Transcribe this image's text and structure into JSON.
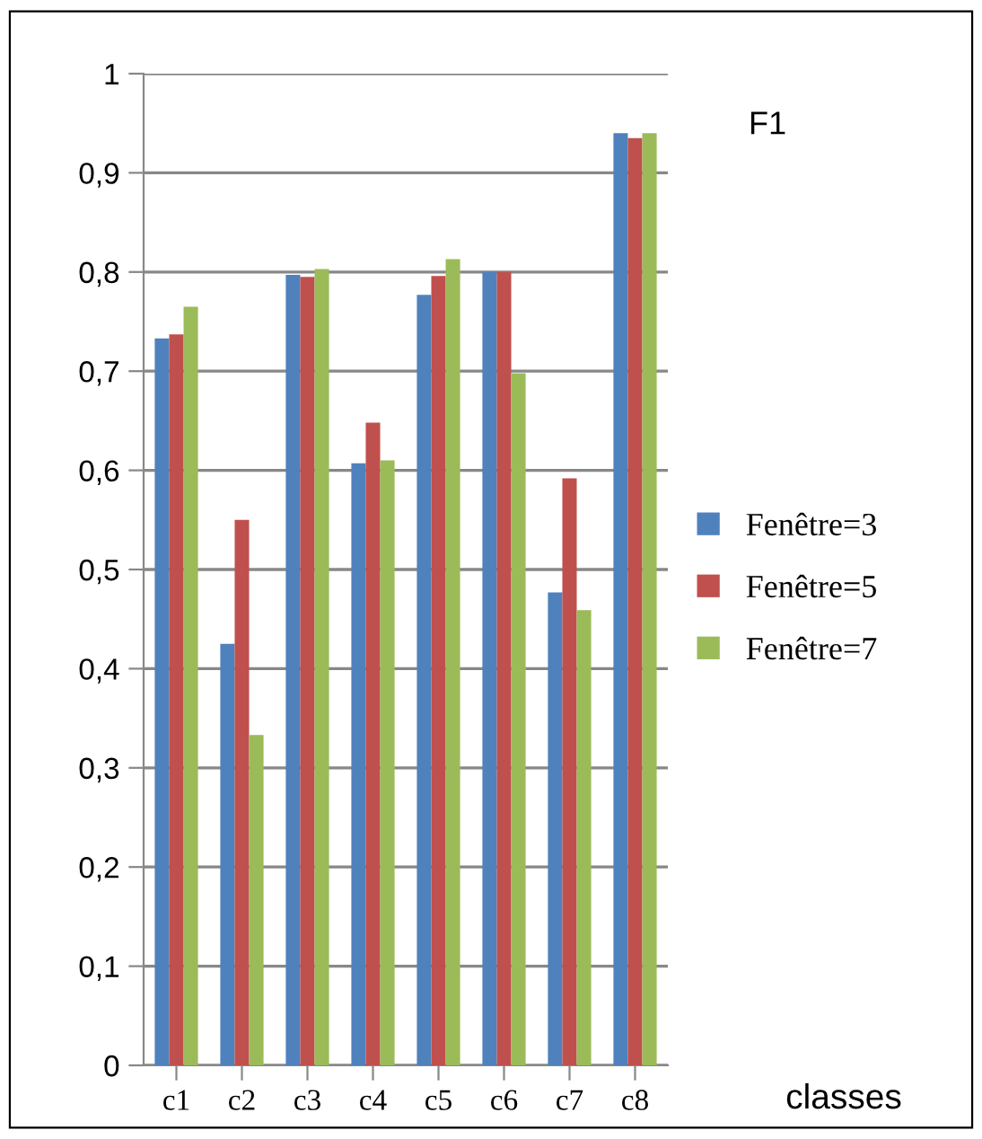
{
  "chart_data": {
    "type": "bar",
    "title": "F1",
    "xlabel": "classes",
    "categories": [
      "c1",
      "c2",
      "c3",
      "c4",
      "c5",
      "c6",
      "c7",
      "c8"
    ],
    "series": [
      {
        "name": "Fenêtre=3",
        "color": "#4f81bd",
        "values": [
          0.733,
          0.425,
          0.797,
          0.607,
          0.777,
          0.8,
          0.477,
          0.94
        ]
      },
      {
        "name": "Fenêtre=5",
        "color": "#c0504d",
        "values": [
          0.737,
          0.55,
          0.795,
          0.648,
          0.796,
          0.8,
          0.592,
          0.935
        ]
      },
      {
        "name": "Fenêtre=7",
        "color": "#9bbb59",
        "values": [
          0.765,
          0.333,
          0.803,
          0.61,
          0.813,
          0.698,
          0.459,
          0.94
        ]
      }
    ],
    "ylim": [
      0,
      1
    ],
    "yticks": [
      0,
      {
        "value": 0.1,
        "label": "0,1"
      },
      {
        "value": 0.2,
        "label": "0,2"
      },
      {
        "value": 0.3,
        "label": "0,3"
      },
      {
        "value": 0.4,
        "label": "0,4"
      },
      {
        "value": 0.5,
        "label": "0,5"
      },
      {
        "value": 0.6,
        "label": "0,6"
      },
      {
        "value": 0.7,
        "label": "0,7"
      },
      {
        "value": 0.8,
        "label": "0,8"
      },
      {
        "value": 0.9,
        "label": "0,9"
      },
      1
    ],
    "grid": "y",
    "legend": "right"
  }
}
